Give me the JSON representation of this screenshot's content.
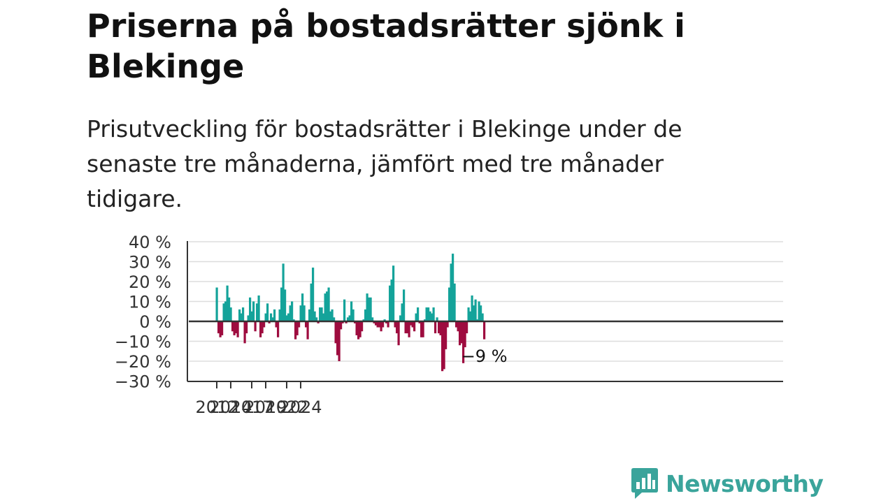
{
  "header": {
    "title": "Priserna på bostadsrätter sjönk i Blekinge",
    "subtitle": "Prisutveckling för bostadsrätter i Blekinge under de senaste tre månaderna, jämfört med tre månader tidigare."
  },
  "brand": {
    "name": "Newsworthy",
    "icon": "newsworthy-chart-bubble-icon"
  },
  "colors": {
    "positive": "#14a39a",
    "negative": "#9e0c3f",
    "grid": "#dddddd",
    "axis": "#333333",
    "brand": "#3aa49b"
  },
  "chart_data": {
    "type": "bar",
    "x_start": "2012-01",
    "x_end": "2024-09",
    "x_ticks": [
      "2012",
      "2014",
      "2017",
      "2019",
      "2022",
      "2024"
    ],
    "y_ticks": [
      "40 %",
      "30 %",
      "20 %",
      "10 %",
      "0 %",
      "−10 %",
      "−20 %",
      "−30 %"
    ],
    "ylim": [
      -30,
      40
    ],
    "grid": true,
    "end_label": "−9 %",
    "values": [
      17,
      -6,
      -8,
      -7,
      9,
      10,
      18,
      12,
      7,
      -5,
      -7,
      -6,
      -8,
      6,
      4,
      7,
      -11,
      -6,
      3,
      12,
      5,
      10,
      -5,
      9,
      13,
      -8,
      -6,
      -3,
      4,
      9,
      -1,
      4,
      2,
      6,
      -3,
      -8,
      6,
      17,
      29,
      16,
      3,
      4,
      8,
      10,
      1,
      -9,
      -7,
      -3,
      8,
      14,
      8,
      -3,
      -9,
      6,
      19,
      27,
      5,
      2,
      -1,
      7,
      7,
      4,
      14,
      15,
      17,
      5,
      6,
      2,
      -11,
      -17,
      -20,
      -4,
      -1,
      11,
      -1,
      2,
      3,
      10,
      6,
      -1,
      -7,
      -9,
      -8,
      -5,
      1,
      6,
      14,
      12,
      12,
      2,
      -1,
      -2,
      -3,
      -3,
      -5,
      -3,
      1,
      -1,
      -3,
      18,
      21,
      28,
      -3,
      -6,
      -12,
      3,
      9,
      16,
      -6,
      -6,
      -8,
      -2,
      -3,
      -5,
      4,
      7,
      -1,
      -8,
      -8,
      1,
      7,
      7,
      5,
      4,
      7,
      -6,
      2,
      -6,
      -7,
      -25,
      -24,
      -14,
      -3,
      17,
      29,
      34,
      19,
      -3,
      -5,
      -12,
      -11,
      -21,
      -13,
      -6,
      7,
      5,
      13,
      8,
      11,
      1,
      10,
      8,
      4,
      -9
    ]
  }
}
